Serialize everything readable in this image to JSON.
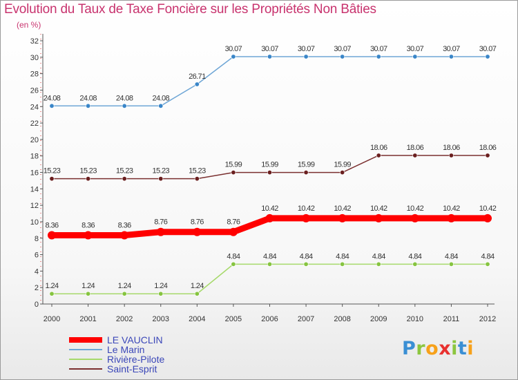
{
  "title": "Evolution du Taux de Taxe Foncière sur les Propriétés Non Bâties",
  "subtitle": "(en %)",
  "logo": {
    "text": "Proxiti",
    "letters": [
      {
        "ch": "P",
        "color": "#3a8fd4"
      },
      {
        "ch": "r",
        "color": "#8cc63f"
      },
      {
        "ch": "o",
        "color": "#f7a11a"
      },
      {
        "ch": "x",
        "color": "#e8312f"
      },
      {
        "ch": "i",
        "color": "#8cc63f"
      },
      {
        "ch": "t",
        "color": "#3a8fd4"
      },
      {
        "ch": "i",
        "color": "#f7a11a"
      }
    ]
  },
  "chart_data": {
    "type": "line",
    "title": "Evolution du Taux de Taxe Foncière sur les Propriétés Non Bâties",
    "ylabel": "(en %)",
    "xlabel": "",
    "categories": [
      "2000",
      "2001",
      "2002",
      "2003",
      "2004",
      "2005",
      "2006",
      "2007",
      "2008",
      "2009",
      "2010",
      "2011",
      "2012"
    ],
    "ylim": [
      0,
      32
    ],
    "yticks": [
      0,
      2,
      4,
      6,
      8,
      10,
      12,
      14,
      16,
      18,
      20,
      22,
      24,
      26,
      28,
      30,
      32
    ],
    "grid": false,
    "legend_position": "bottom-left",
    "series": [
      {
        "name": "LE VAUCLIN",
        "color": "#ff0000",
        "emphasis": true,
        "values": [
          8.36,
          8.36,
          8.36,
          8.76,
          8.76,
          8.76,
          10.42,
          10.42,
          10.42,
          10.42,
          10.42,
          10.42,
          10.42
        ],
        "labels": [
          "8.36",
          "8.36",
          "8.36",
          "8.76",
          "8.76",
          "8.76",
          "10.42",
          "10.42",
          "10.42",
          "10.42",
          "10.42",
          "10.42",
          "10.42"
        ]
      },
      {
        "name": "Le Marin",
        "color": "#6ea6d6",
        "point_color": "#3a86c8",
        "emphasis": false,
        "values": [
          24.08,
          24.08,
          24.08,
          24.08,
          26.71,
          30.07,
          30.07,
          30.07,
          30.07,
          30.07,
          30.07,
          30.07,
          30.07
        ],
        "labels": [
          "24.08",
          "24.08",
          "24.08",
          "24.08",
          "26.71",
          "30.07",
          "30.07",
          "30.07",
          "30.07",
          "30.07",
          "30.07",
          "30.07",
          "30.07"
        ]
      },
      {
        "name": "Rivière-Pilote",
        "color": "#a6d96a",
        "point_color": "#86c440",
        "emphasis": false,
        "values": [
          1.24,
          1.24,
          1.24,
          1.24,
          1.24,
          4.84,
          4.84,
          4.84,
          4.84,
          4.84,
          4.84,
          4.84,
          4.84
        ],
        "labels": [
          "1.24",
          "1.24",
          "1.24",
          "1.24",
          "1.24",
          "4.84",
          "4.84",
          "4.84",
          "4.84",
          "4.84",
          "4.84",
          "4.84",
          "4.84"
        ]
      },
      {
        "name": "Saint-Esprit",
        "color": "#7a2f2f",
        "point_color": "#6a1f1f",
        "emphasis": false,
        "values": [
          15.23,
          15.23,
          15.23,
          15.23,
          15.23,
          15.99,
          15.99,
          15.99,
          15.99,
          18.06,
          18.06,
          18.06,
          18.06
        ],
        "labels": [
          "15.23",
          "15.23",
          "15.23",
          "15.23",
          "15.23",
          "15.99",
          "15.99",
          "15.99",
          "15.99",
          "18.06",
          "18.06",
          "18.06",
          "18.06"
        ]
      }
    ]
  }
}
